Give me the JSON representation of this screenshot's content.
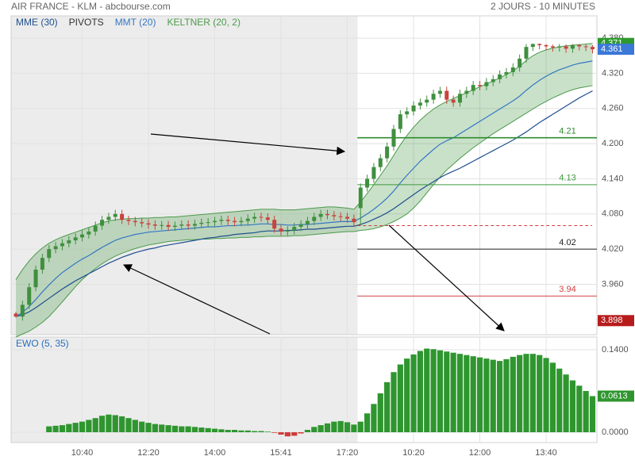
{
  "chart_data": [
    {
      "type": "candlestick",
      "title": "AIR FRANCE - KLM - abcbourse.com",
      "subtitle": "2 JOURS - 10 MINUTES",
      "xlim": [
        -0.72,
        87.66
      ],
      "xticks": [
        {
          "value": 10,
          "label": "10:40"
        },
        {
          "value": 20,
          "label": "12:20"
        },
        {
          "value": 30,
          "label": "14:00"
        },
        {
          "value": 40,
          "label": "15:41"
        },
        {
          "value": 50,
          "label": "17:20"
        },
        {
          "value": 60,
          "label": "10:20"
        },
        {
          "value": 70,
          "label": "12:00"
        },
        {
          "value": 80,
          "label": "13:40"
        }
      ],
      "ylim": [
        3.874,
        4.418
      ],
      "yticks": [
        {
          "value": 3.96,
          "label": "3.960"
        },
        {
          "value": 4.02,
          "label": "4.020"
        },
        {
          "value": 4.08,
          "label": "4.080"
        },
        {
          "value": 4.14,
          "label": "4.140"
        },
        {
          "value": 4.2,
          "label": "4.200"
        },
        {
          "value": 4.26,
          "label": "4.260"
        },
        {
          "value": 4.32,
          "label": "4.320"
        },
        {
          "value": 4.38,
          "label": "4.380"
        }
      ],
      "grid": true,
      "candles": {
        "up_color": "#3f8f3f",
        "down_color": "#c9423c",
        "open": [
          3.91,
          3.905,
          3.925,
          3.955,
          3.985,
          4.005,
          4.02,
          4.025,
          4.03,
          4.035,
          4.04,
          4.045,
          4.05,
          4.06,
          4.07,
          4.075,
          4.08,
          4.07,
          4.068,
          4.066,
          4.064,
          4.062,
          4.06,
          4.061,
          4.058,
          4.06,
          4.062,
          4.06,
          4.063,
          4.065,
          4.066,
          4.068,
          4.07,
          4.068,
          4.066,
          4.068,
          4.072,
          4.075,
          4.074,
          4.07,
          4.055,
          4.05,
          4.052,
          4.058,
          4.062,
          4.068,
          4.075,
          4.08,
          4.078,
          4.076,
          4.075,
          4.072,
          4.09,
          4.125,
          4.14,
          4.16,
          4.175,
          4.195,
          4.225,
          4.25,
          4.255,
          4.265,
          4.27,
          4.275,
          4.285,
          4.29,
          4.275,
          4.27,
          4.285,
          4.29,
          4.3,
          4.298,
          4.305,
          4.31,
          4.318,
          4.322,
          4.33,
          4.345,
          4.365,
          4.37,
          4.368,
          4.366,
          4.364,
          4.366,
          4.362,
          4.368,
          4.366,
          4.365
        ],
        "high": [
          3.913,
          3.932,
          3.962,
          3.992,
          4.012,
          4.027,
          4.032,
          4.037,
          4.042,
          4.047,
          4.052,
          4.057,
          4.067,
          4.077,
          4.082,
          4.087,
          4.087,
          4.077,
          4.075,
          4.073,
          4.071,
          4.069,
          4.068,
          4.068,
          4.067,
          4.069,
          4.069,
          4.07,
          4.072,
          4.073,
          4.075,
          4.077,
          4.077,
          4.075,
          4.075,
          4.079,
          4.082,
          4.082,
          4.081,
          4.077,
          4.062,
          4.059,
          4.065,
          4.069,
          4.075,
          4.082,
          4.087,
          4.087,
          4.085,
          4.083,
          4.082,
          4.079,
          4.132,
          4.147,
          4.167,
          4.182,
          4.202,
          4.232,
          4.257,
          4.262,
          4.272,
          4.277,
          4.282,
          4.292,
          4.297,
          4.297,
          4.282,
          4.292,
          4.297,
          4.307,
          4.307,
          4.312,
          4.317,
          4.325,
          4.329,
          4.337,
          4.352,
          4.37,
          4.371,
          4.371,
          4.37,
          4.369,
          4.37,
          4.369,
          4.37,
          4.37,
          4.369,
          4.368
        ],
        "low": [
          3.903,
          3.898,
          3.918,
          3.948,
          3.978,
          3.998,
          4.013,
          4.018,
          4.023,
          4.028,
          4.033,
          4.038,
          4.043,
          4.053,
          4.063,
          4.068,
          4.063,
          4.061,
          4.059,
          4.057,
          4.055,
          4.053,
          4.053,
          4.051,
          4.051,
          4.053,
          4.053,
          4.053,
          4.056,
          4.058,
          4.059,
          4.061,
          4.061,
          4.059,
          4.059,
          4.061,
          4.065,
          4.067,
          4.063,
          4.048,
          4.043,
          4.043,
          4.045,
          4.051,
          4.055,
          4.061,
          4.068,
          4.071,
          4.069,
          4.068,
          4.065,
          4.059,
          4.06,
          4.118,
          4.133,
          4.153,
          4.168,
          4.188,
          4.218,
          4.243,
          4.248,
          4.258,
          4.263,
          4.268,
          4.278,
          4.268,
          4.263,
          4.263,
          4.278,
          4.283,
          4.291,
          4.291,
          4.298,
          4.303,
          4.311,
          4.315,
          4.323,
          4.338,
          4.358,
          4.361,
          4.359,
          4.357,
          4.357,
          4.355,
          4.355,
          4.359,
          4.358,
          4.354
        ],
        "close": [
          3.905,
          3.925,
          3.955,
          3.985,
          4.005,
          4.02,
          4.025,
          4.03,
          4.035,
          4.04,
          4.045,
          4.05,
          4.06,
          4.07,
          4.075,
          4.08,
          4.07,
          4.068,
          4.066,
          4.064,
          4.062,
          4.06,
          4.061,
          4.058,
          4.06,
          4.062,
          4.06,
          4.063,
          4.065,
          4.066,
          4.068,
          4.07,
          4.068,
          4.066,
          4.068,
          4.072,
          4.075,
          4.074,
          4.07,
          4.055,
          4.05,
          4.052,
          4.058,
          4.062,
          4.068,
          4.075,
          4.08,
          4.078,
          4.076,
          4.075,
          4.072,
          4.066,
          4.125,
          4.14,
          4.16,
          4.175,
          4.195,
          4.225,
          4.25,
          4.255,
          4.265,
          4.27,
          4.275,
          4.285,
          4.29,
          4.275,
          4.27,
          4.285,
          4.29,
          4.3,
          4.298,
          4.305,
          4.31,
          4.318,
          4.322,
          4.33,
          4.345,
          4.365,
          4.37,
          4.368,
          4.366,
          4.364,
          4.366,
          4.362,
          4.368,
          4.366,
          4.365,
          4.361
        ]
      },
      "series": [
        {
          "name": "MME (30)",
          "color": "#1f4f8f",
          "values": [
            3.905,
            3.908,
            3.913,
            3.92,
            3.928,
            3.936,
            3.944,
            3.952,
            3.959,
            3.966,
            3.972,
            3.978,
            3.984,
            3.99,
            3.996,
            4.001,
            4.006,
            4.01,
            4.014,
            4.017,
            4.02,
            4.022,
            4.025,
            4.027,
            4.029,
            4.031,
            4.033,
            4.035,
            4.037,
            4.039,
            4.04,
            4.042,
            4.043,
            4.045,
            4.046,
            4.047,
            4.048,
            4.05,
            4.051,
            4.051,
            4.051,
            4.052,
            4.052,
            4.053,
            4.054,
            4.054,
            4.055,
            4.056,
            4.057,
            4.058,
            4.059,
            4.059,
            4.062,
            4.066,
            4.071,
            4.076,
            4.082,
            4.089,
            4.097,
            4.105,
            4.113,
            4.121,
            4.128,
            4.135,
            4.142,
            4.148,
            4.153,
            4.158,
            4.164,
            4.17,
            4.176,
            4.182,
            4.188,
            4.194,
            4.2,
            4.206,
            4.213,
            4.22,
            4.228,
            4.236,
            4.243,
            4.25,
            4.257,
            4.264,
            4.271,
            4.278,
            4.284,
            4.29
          ]
        },
        {
          "name": "MMT (20)",
          "color": "#3577c4",
          "values": [
            3.905,
            3.912,
            3.922,
            3.934,
            3.947,
            3.959,
            3.97,
            3.98,
            3.988,
            3.996,
            4.003,
            4.009,
            4.016,
            4.023,
            4.029,
            4.035,
            4.039,
            4.042,
            4.045,
            4.047,
            4.049,
            4.05,
            4.051,
            4.052,
            4.053,
            4.054,
            4.055,
            4.056,
            4.057,
            4.058,
            4.058,
            4.059,
            4.06,
            4.06,
            4.061,
            4.061,
            4.062,
            4.063,
            4.063,
            4.062,
            4.062,
            4.061,
            4.061,
            4.062,
            4.062,
            4.063,
            4.064,
            4.065,
            4.066,
            4.067,
            4.067,
            4.067,
            4.073,
            4.08,
            4.088,
            4.097,
            4.107,
            4.119,
            4.133,
            4.146,
            4.158,
            4.17,
            4.18,
            4.19,
            4.199,
            4.205,
            4.21,
            4.217,
            4.224,
            4.231,
            4.238,
            4.245,
            4.252,
            4.259,
            4.266,
            4.273,
            4.281,
            4.291,
            4.3,
            4.308,
            4.315,
            4.321,
            4.326,
            4.33,
            4.334,
            4.337,
            4.339,
            4.341
          ]
        }
      ],
      "keltner": {
        "name": "KELTNER (20, 2)",
        "color": "#4c9a4c",
        "upper": [
          3.968,
          3.985,
          4.0,
          4.012,
          4.022,
          4.03,
          4.036,
          4.041,
          4.045,
          4.049,
          4.053,
          4.057,
          4.061,
          4.065,
          4.068,
          4.07,
          4.071,
          4.072,
          4.072,
          4.073,
          4.073,
          4.074,
          4.074,
          4.075,
          4.075,
          4.076,
          4.077,
          4.078,
          4.079,
          4.08,
          4.081,
          4.082,
          4.083,
          4.084,
          4.085,
          4.086,
          4.087,
          4.088,
          4.088,
          4.088,
          4.087,
          4.087,
          4.087,
          4.088,
          4.089,
          4.09,
          4.091,
          4.092,
          4.092,
          4.091,
          4.09,
          4.088,
          4.1,
          4.115,
          4.13,
          4.146,
          4.162,
          4.18,
          4.198,
          4.214,
          4.228,
          4.24,
          4.25,
          4.259,
          4.266,
          4.272,
          4.277,
          4.282,
          4.287,
          4.292,
          4.297,
          4.302,
          4.307,
          4.312,
          4.318,
          4.324,
          4.332,
          4.342,
          4.35,
          4.356,
          4.36,
          4.363,
          4.365,
          4.367,
          4.368,
          4.369,
          4.37,
          4.371
        ],
        "lower": [
          3.87,
          3.875,
          3.88,
          3.887,
          3.895,
          3.905,
          3.917,
          3.93,
          3.943,
          3.956,
          3.968,
          3.978,
          3.987,
          3.995,
          4.002,
          4.008,
          4.013,
          4.017,
          4.021,
          4.024,
          4.027,
          4.029,
          4.031,
          4.033,
          4.034,
          4.035,
          4.036,
          4.036,
          4.037,
          4.037,
          4.038,
          4.038,
          4.039,
          4.039,
          4.04,
          4.04,
          4.041,
          4.041,
          4.042,
          4.042,
          4.042,
          4.042,
          4.043,
          4.043,
          4.044,
          4.045,
          4.046,
          4.047,
          4.048,
          4.049,
          4.05,
          4.05,
          4.052,
          4.053,
          4.055,
          4.058,
          4.062,
          4.067,
          4.073,
          4.08,
          4.09,
          4.102,
          4.116,
          4.13,
          4.143,
          4.155,
          4.165,
          4.175,
          4.184,
          4.193,
          4.201,
          4.209,
          4.217,
          4.224,
          4.231,
          4.238,
          4.245,
          4.252,
          4.259,
          4.266,
          4.272,
          4.278,
          4.283,
          4.288,
          4.292,
          4.295,
          4.297,
          4.299
        ]
      },
      "pivots_name": "PIVOTS",
      "pivots_color": "#333333",
      "pivots": [
        4.21,
        4.13,
        4.02,
        3.94
      ],
      "pivot_colors": [
        "#2e8b2e",
        "#3f9a3f",
        "#222222",
        "#d04040"
      ],
      "reference_line": {
        "value": 4.06,
        "color": "#d04040"
      },
      "price_label_colors": {
        "high": "#2e9a2e",
        "last": "#3b78d8",
        "low": "#b71c1c"
      }
    },
    {
      "type": "bar",
      "title": "EWO (5, 35)",
      "ylim": [
        -0.0175,
        0.1615
      ],
      "yticks": [
        {
          "value": 0,
          "label": "0.0000"
        },
        {
          "value": 0.14,
          "label": "0.1400"
        }
      ],
      "up_color": "#2f962f",
      "down_color": "#d03a3a",
      "values": [
        null,
        null,
        null,
        null,
        null,
        0.01,
        0.011,
        0.012,
        0.014,
        0.016,
        0.018,
        0.021,
        0.024,
        0.028,
        0.03,
        0.029,
        0.027,
        0.024,
        0.021,
        0.018,
        0.016,
        0.014,
        0.013,
        0.012,
        0.011,
        0.01,
        0.01,
        0.009,
        0.008,
        0.007,
        0.006,
        0.005,
        0.004,
        0.004,
        0.003,
        0.003,
        0.002,
        0.002,
        0.001,
        -0.001,
        -0.004,
        -0.007,
        -0.006,
        -0.002,
        0.004,
        0.009,
        0.012,
        0.015,
        0.018,
        0.019,
        0.017,
        0.013,
        0.018,
        0.032,
        0.048,
        0.066,
        0.085,
        0.102,
        0.115,
        0.125,
        0.132,
        0.138,
        0.142,
        0.141,
        0.139,
        0.137,
        0.135,
        0.133,
        0.131,
        0.129,
        0.127,
        0.125,
        0.123,
        0.121,
        0.124,
        0.128,
        0.131,
        0.133,
        0.133,
        0.131,
        0.126,
        0.118,
        0.108,
        0.098,
        0.088,
        0.079,
        0.07,
        0.0613
      ]
    }
  ]
}
